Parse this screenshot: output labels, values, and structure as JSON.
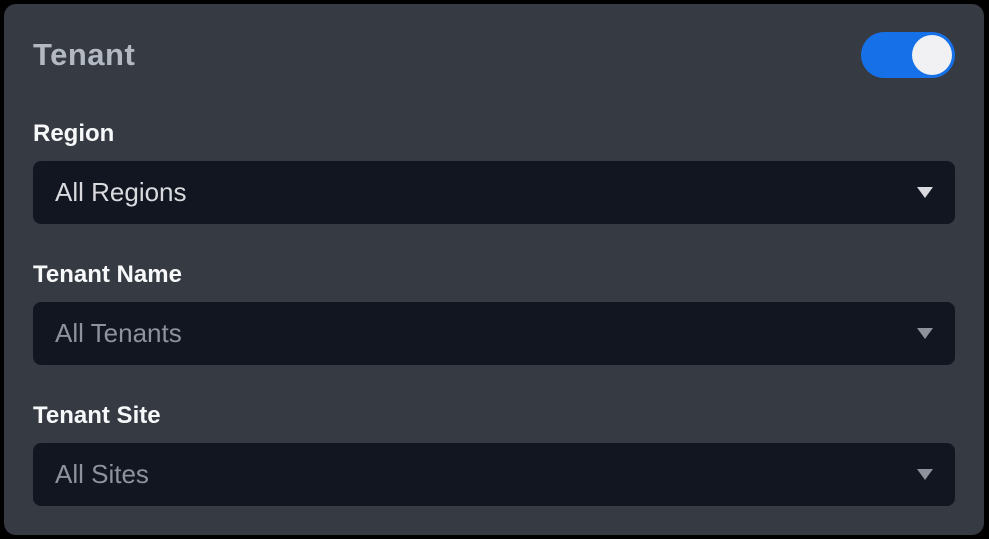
{
  "panel": {
    "title": "Tenant",
    "toggle": {
      "name": "tenant-enabled",
      "state": "on"
    },
    "fields": [
      {
        "id": "region",
        "label": "Region",
        "value": "All Regions",
        "state": "selected"
      },
      {
        "id": "tenant-name",
        "label": "Tenant Name",
        "value": "All Tenants",
        "state": "placeholder"
      },
      {
        "id": "tenant-site",
        "label": "Tenant Site",
        "value": "All Sites",
        "state": "placeholder"
      }
    ]
  },
  "colors": {
    "outer-bg": "#000000",
    "panel-bg": "#363a42",
    "field-bg": "#121621",
    "title": "#b3b9c2",
    "label": "#f7f8f9",
    "value-selected": "#d8dade",
    "value-placeholder": "#8d929b",
    "toggle-on": "#1670e8",
    "toggle-knob": "#f1f1f3"
  }
}
